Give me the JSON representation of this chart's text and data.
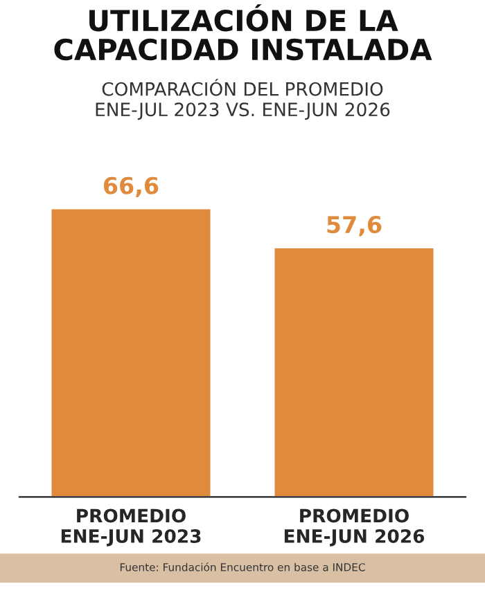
{
  "chart_data": {
    "type": "bar",
    "title": "UTILIZACIÓN DE LA\nCAPACIDAD INSTALADA",
    "subtitle": "COMPARACIÓN DEL PROMEDIO\nENE-JUL 2023 VS. ENE-JUN 2026",
    "categories": [
      "PROMEDIO\nENE-JUN 2023",
      "PROMEDIO\nENE-JUN 2026"
    ],
    "values": [
      66.6,
      57.6
    ],
    "value_labels": [
      "66,6",
      "57,6"
    ],
    "color": "#e08a3c",
    "annotations": [
      "Fuente: Fundación Encuentro en base a INDEC"
    ]
  }
}
